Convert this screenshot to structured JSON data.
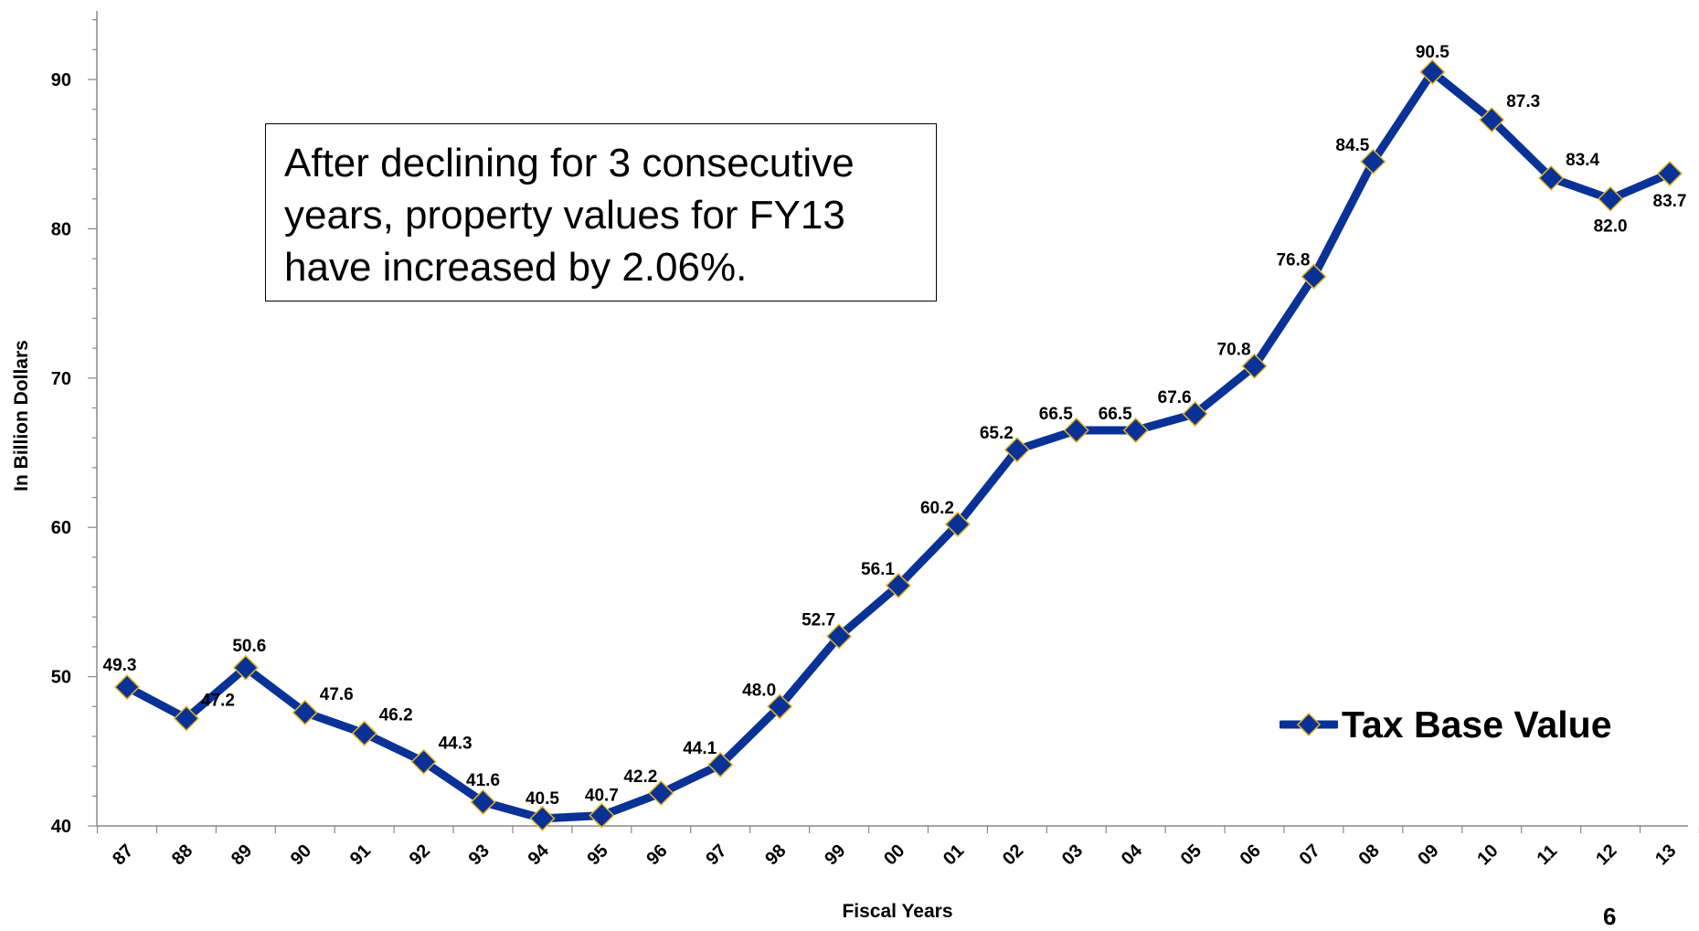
{
  "annotation": {
    "text": "After declining for 3 consecutive years, property values for FY13 have increased by 2.06%."
  },
  "legend": {
    "label": "Tax Base Value"
  },
  "page_number": "6",
  "colors": {
    "line": "#0a3296",
    "marker_fill": "#0a3296",
    "marker_stroke": "#e6b422"
  },
  "chart_data": {
    "type": "line",
    "xlabel": "Fiscal Years",
    "ylabel": "In Billion Dollars",
    "categories": [
      "87",
      "88",
      "89",
      "90",
      "91",
      "92",
      "93",
      "94",
      "95",
      "96",
      "97",
      "98",
      "99",
      "00",
      "01",
      "02",
      "03",
      "04",
      "05",
      "06",
      "07",
      "08",
      "09",
      "10",
      "11",
      "12",
      "13"
    ],
    "series": [
      {
        "name": "Tax Base Value",
        "values": [
          49.3,
          47.2,
          50.6,
          47.6,
          46.2,
          44.3,
          41.6,
          40.5,
          40.7,
          42.2,
          44.1,
          48.0,
          52.7,
          56.1,
          60.2,
          65.2,
          66.5,
          66.5,
          67.6,
          70.8,
          76.8,
          84.5,
          90.5,
          87.3,
          83.4,
          82.0,
          83.7
        ],
        "labels": [
          "49.3",
          "47.2",
          "50.6",
          "47.6",
          "46.2",
          "44.3",
          "41.6",
          "40.5",
          "40.7",
          "42.2",
          "44.1",
          "48.0",
          "52.7",
          "56.1",
          "60.2",
          "65.2",
          "66.5",
          "66.5",
          "67.6",
          "70.8",
          "76.8",
          "84.5",
          "90.5",
          "87.3",
          "83.4",
          "82.0",
          "83.7"
        ]
      }
    ],
    "ylim": [
      40,
      95
    ],
    "yticks": [
      40,
      50,
      60,
      70,
      80,
      90
    ],
    "grid": false,
    "legend_position": "bottom-right"
  }
}
